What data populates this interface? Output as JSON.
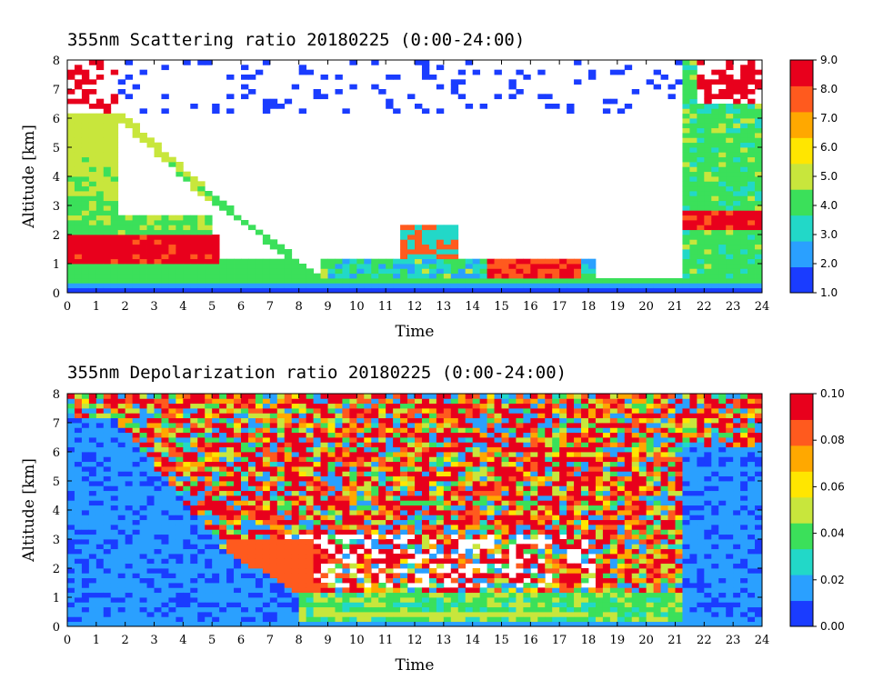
{
  "chart_data": [
    {
      "type": "heatmap",
      "title": "355nm Scattering ratio  20180225 (0:00-24:00)",
      "xlabel": "Time",
      "ylabel": "Altitude [km]",
      "xlim": [
        0,
        24
      ],
      "ylim": [
        0,
        8
      ],
      "x_ticks": [
        "0",
        "1",
        "2",
        "3",
        "4",
        "5",
        "6",
        "7",
        "8",
        "9",
        "10",
        "11",
        "12",
        "13",
        "14",
        "15",
        "16",
        "17",
        "18",
        "19",
        "20",
        "21",
        "22",
        "23",
        "24"
      ],
      "y_ticks": [
        "0",
        "1",
        "2",
        "3",
        "4",
        "5",
        "6",
        "7",
        "8"
      ],
      "colorbar": {
        "min": 1.0,
        "max": 9.0,
        "ticks": [
          "1.0",
          "2.0",
          "3.0",
          "4.0",
          "5.0",
          "6.0",
          "7.0",
          "8.0",
          "9.0"
        ],
        "colors": [
          "#1a3cff",
          "#2aa0ff",
          "#22d8c8",
          "#3be05a",
          "#c8e63c",
          "#ffe600",
          "#ffa800",
          "#ff5a1e",
          "#e8001c"
        ]
      }
    },
    {
      "type": "heatmap",
      "title": "355nm Depolarization ratio  20180225 (0:00-24:00)",
      "xlabel": "Time",
      "ylabel": "Altitude [km]",
      "xlim": [
        0,
        24
      ],
      "ylim": [
        0,
        8
      ],
      "x_ticks": [
        "0",
        "1",
        "2",
        "3",
        "4",
        "5",
        "6",
        "7",
        "8",
        "9",
        "10",
        "11",
        "12",
        "13",
        "14",
        "15",
        "16",
        "17",
        "18",
        "19",
        "20",
        "21",
        "22",
        "23",
        "24"
      ],
      "y_ticks": [
        "0",
        "1",
        "2",
        "3",
        "4",
        "5",
        "6",
        "7",
        "8"
      ],
      "colorbar": {
        "min": 0.0,
        "max": 0.1,
        "ticks": [
          "0.00",
          "0.02",
          "0.04",
          "0.06",
          "0.08",
          "0.10"
        ],
        "colors": [
          "#1a3cff",
          "#2aa0ff",
          "#22d8c8",
          "#3be05a",
          "#c8e63c",
          "#ffe600",
          "#ffa800",
          "#ff5a1e",
          "#e8001c"
        ]
      }
    }
  ]
}
